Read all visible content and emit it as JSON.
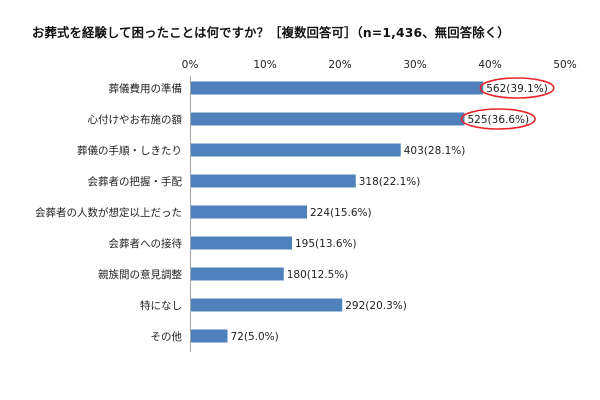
{
  "chart_data": {
    "type": "bar",
    "orientation": "horizontal",
    "title": "お葬式を経験して困ったことは何ですか？［複数回答可］（n=1,436、無回答除く）",
    "xlim": [
      0,
      50
    ],
    "xticks": [
      0,
      10,
      20,
      30,
      40,
      50
    ],
    "xtick_labels": [
      "0%",
      "10%",
      "20%",
      "30%",
      "40%",
      "50%"
    ],
    "categories": [
      "葬儀費用の準備",
      "心付けやお布施の額",
      "葬儀の手順・しきたり",
      "会葬者の把握・手配",
      "会葬者の人数が想定以上だった",
      "会葬者への接待",
      "親族間の意見調整",
      "特になし",
      "その他"
    ],
    "values": [
      39.1,
      36.6,
      28.1,
      22.1,
      15.6,
      13.6,
      12.5,
      20.3,
      5.0
    ],
    "counts": [
      562,
      525,
      403,
      318,
      224,
      195,
      180,
      292,
      72
    ],
    "data_labels": [
      "562(39.1%)",
      "525(36.6%)",
      "403(28.1%)",
      "318(22.1%)",
      "224(15.6%)",
      "195(13.6%)",
      "180(12.5%)",
      "292(20.3%)",
      "72(5.0%)"
    ],
    "highlighted_indices": [
      0,
      1
    ],
    "grid": false,
    "legend": "none",
    "colors": {
      "bar": "#4F81BD",
      "highlight": "#E8262A",
      "axis": "#A6A6A6",
      "text": "#222222"
    }
  }
}
